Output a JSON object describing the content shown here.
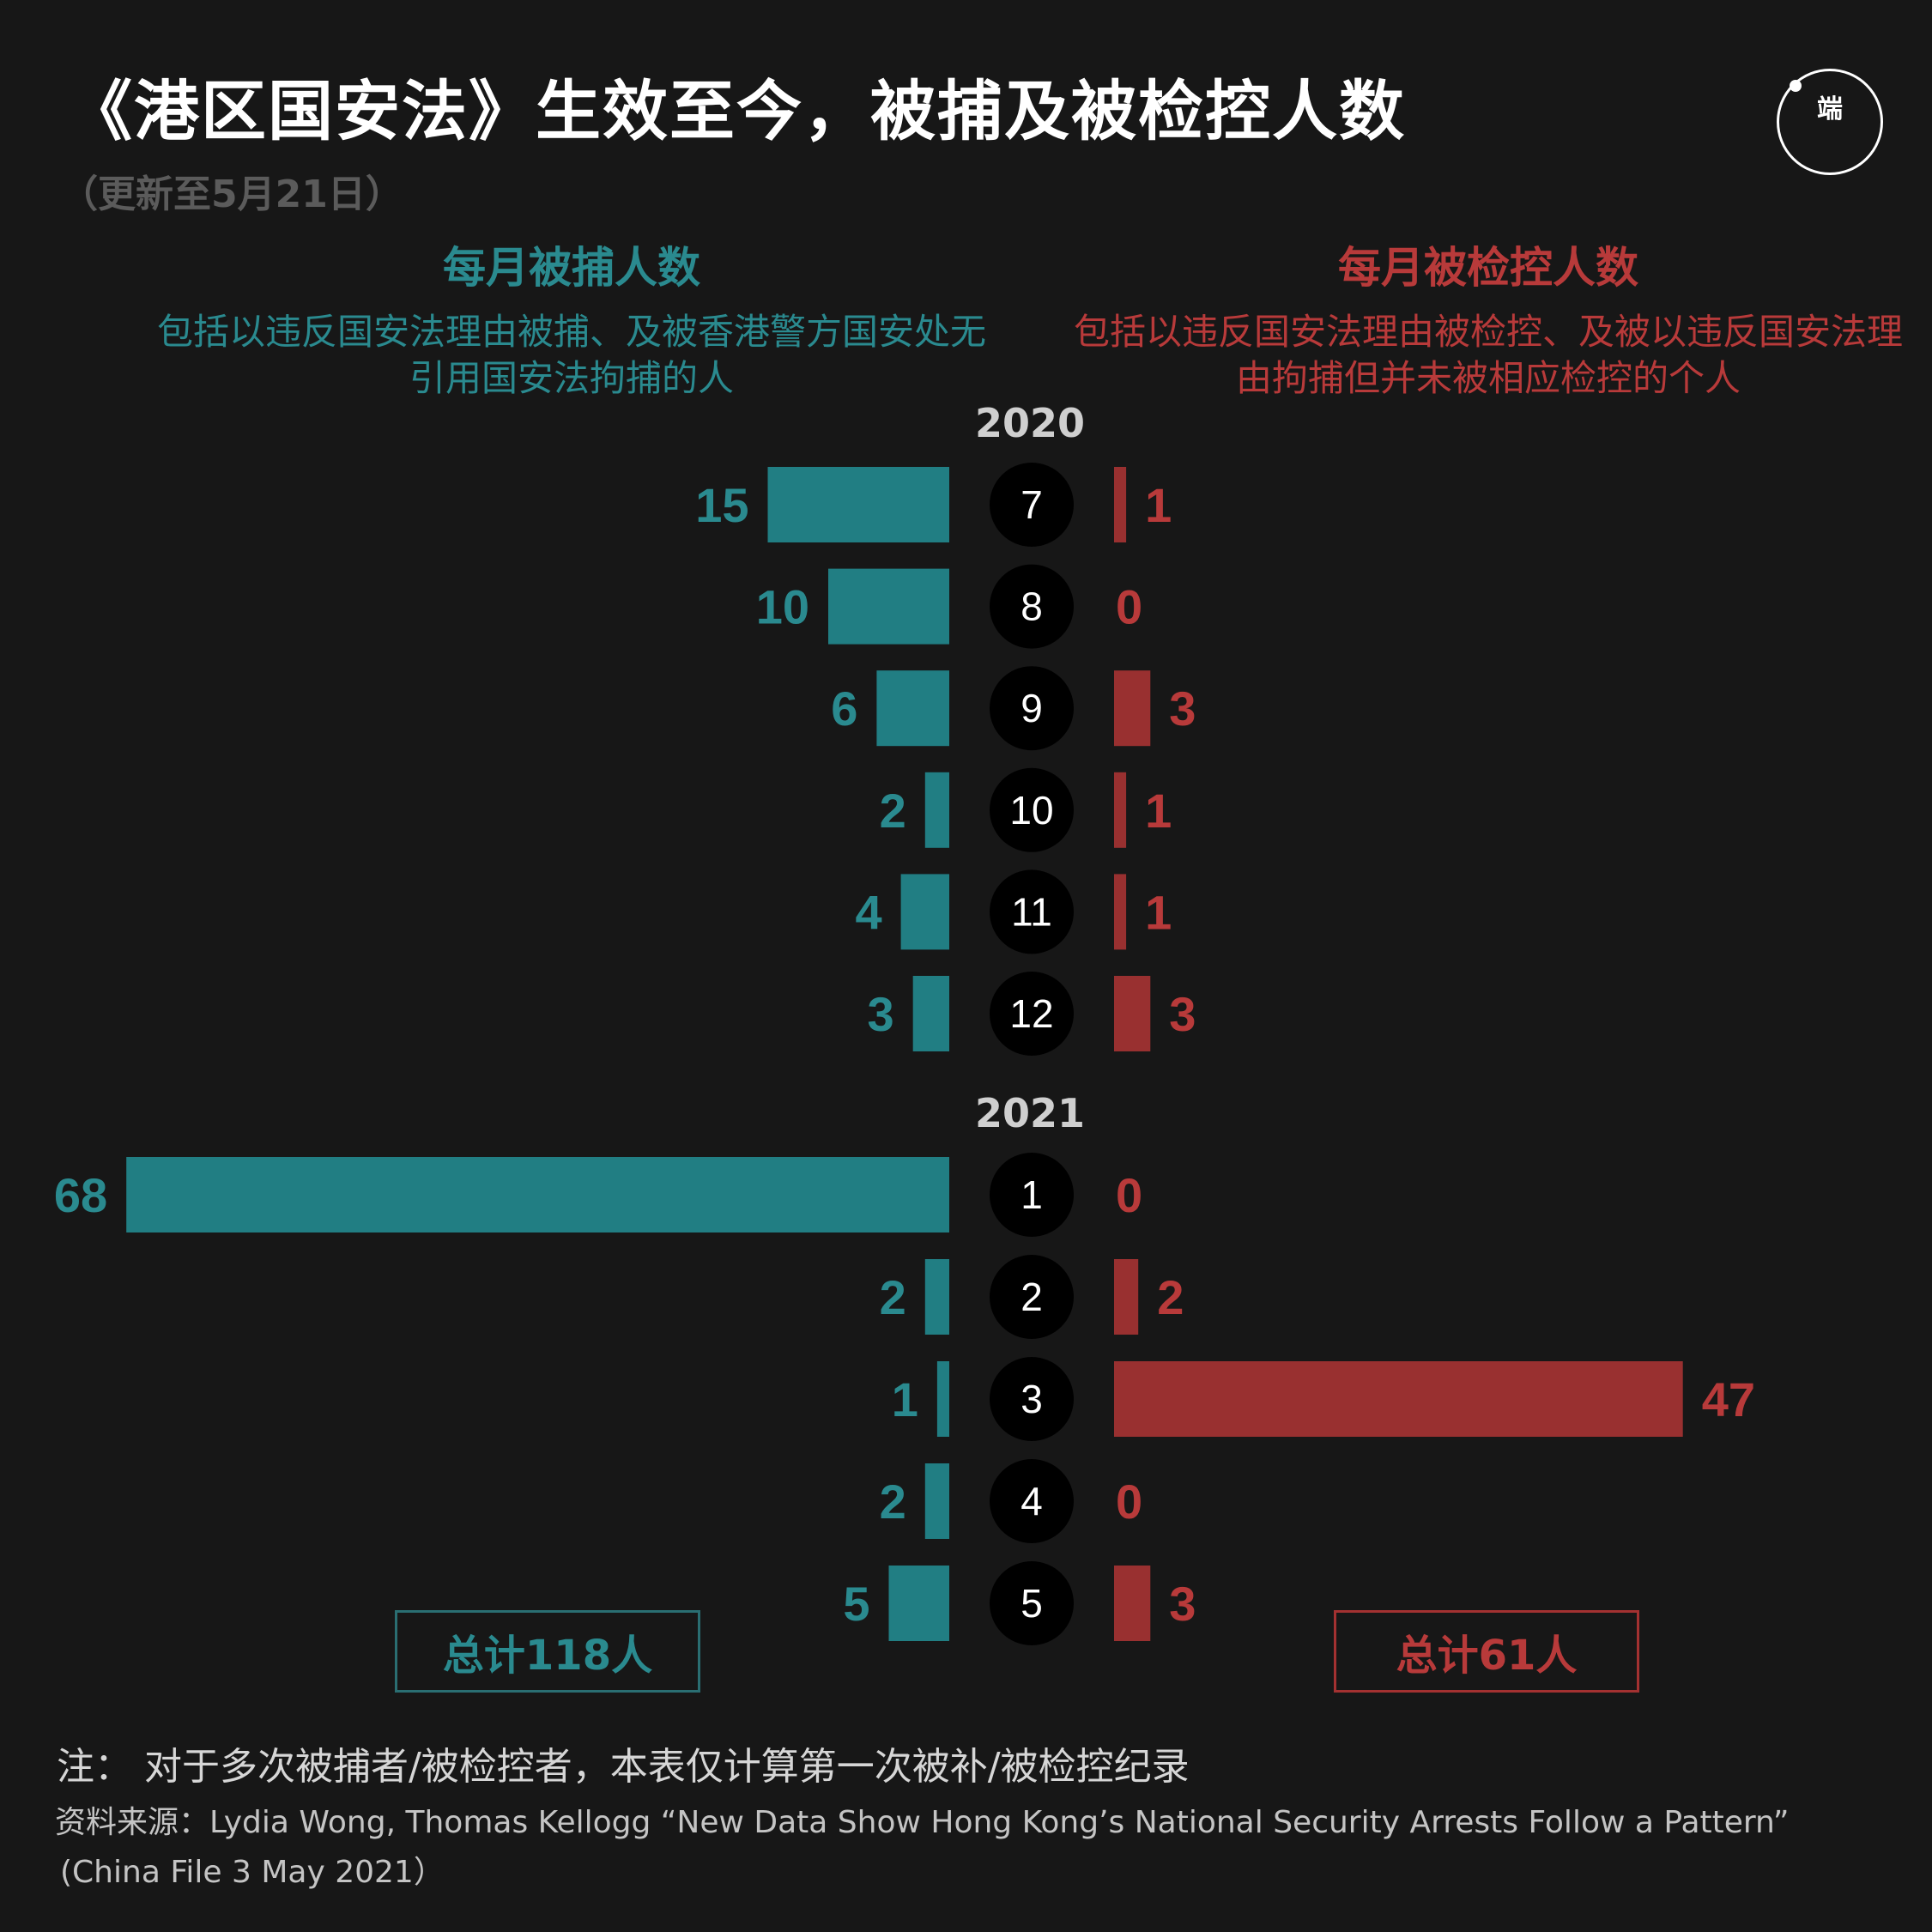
{
  "title": "《港区国安法》生效至今，被捕及被检控人数",
  "subtitle": "（更新至5月21日）",
  "logo_text": "端",
  "left_panel": {
    "heading": "每月被捕人数",
    "description": "包括以违反国安法理由被捕、及被香港警方国安处无引用国安法拘捕的人",
    "total": "总计118人"
  },
  "right_panel": {
    "heading": "每月被检控人数",
    "description": "包括以违反国安法理由被检控、及被以违反国安法理由拘捕但并未被相应检控的个人",
    "total": "总计61人"
  },
  "years": [
    "2020",
    "2021"
  ],
  "note": "注：  对于多次被捕者/被检控者，本表仅计算第一次被补/被检控纪录",
  "source_line1": "资料来源：Lydia Wong, Thomas Kellogg “New Data Show Hong Kong’s National Security Arrests Follow a Pattern”",
  "source_line2": "(China File 3 May 2021）",
  "colors": {
    "arrests": "#217e83",
    "arrests_label": "#2a8a8f",
    "charges": "#993030",
    "charges_label": "#b83a3a",
    "month_circle": "#000000",
    "background": "#171717"
  },
  "chart_data": {
    "type": "bar",
    "orientation": "diverging-horizontal",
    "categories": [
      "7",
      "8",
      "9",
      "10",
      "11",
      "12",
      "1",
      "2",
      "3",
      "4",
      "5"
    ],
    "category_years": [
      "2020",
      "2020",
      "2020",
      "2020",
      "2020",
      "2020",
      "2021",
      "2021",
      "2021",
      "2021",
      "2021"
    ],
    "series": [
      {
        "name": "每月被捕人数",
        "values": [
          15,
          10,
          6,
          2,
          4,
          3,
          68,
          2,
          1,
          2,
          5
        ]
      },
      {
        "name": "每月被检控人数",
        "values": [
          1,
          0,
          3,
          1,
          1,
          3,
          0,
          2,
          47,
          0,
          3
        ]
      }
    ]
  }
}
